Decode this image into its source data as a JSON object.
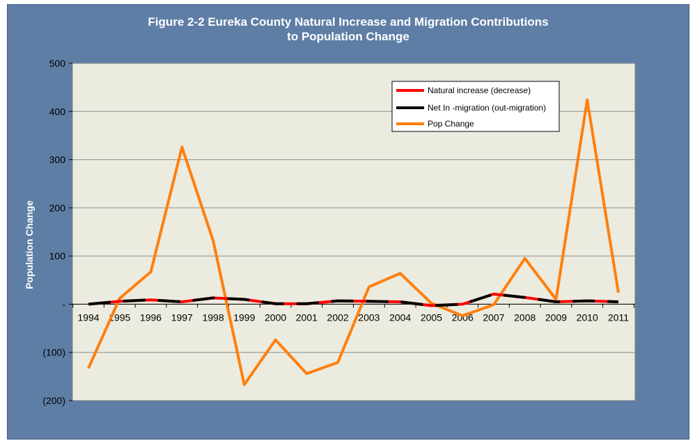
{
  "chart_data": {
    "type": "line",
    "title_line1": "Figure 2-2 Eureka County Natural Increase and Migration Contributions",
    "title_line2": "to Population Change",
    "ylabel": "Population Change",
    "ylim": [
      -200,
      500
    ],
    "yticks": [
      {
        "value": 500,
        "label": "500"
      },
      {
        "value": 400,
        "label": "400"
      },
      {
        "value": 300,
        "label": "300"
      },
      {
        "value": 200,
        "label": "200"
      },
      {
        "value": 100,
        "label": "100"
      },
      {
        "value": 0,
        "label": "-"
      },
      {
        "value": -100,
        "label": "(100)"
      },
      {
        "value": -200,
        "label": "(200)"
      }
    ],
    "categories": [
      "1994",
      "1995",
      "1996",
      "1997",
      "1998",
      "1999",
      "2000",
      "2001",
      "2002",
      "2003",
      "2004",
      "2005",
      "2006",
      "2007",
      "2008",
      "2009",
      "2010",
      "2011"
    ],
    "grid": true,
    "legend_position": "top-right",
    "series": [
      {
        "name": "Natural increase (decrease)",
        "color": "#ff0000",
        "style": "dashed",
        "values": [
          0,
          6,
          9,
          5,
          13,
          10,
          1,
          1,
          7,
          6,
          5,
          -3,
          0,
          21,
          14,
          5,
          7,
          5
        ]
      },
      {
        "name": "Net In -migration (out-migration)",
        "color": "#000000",
        "style": "dashed",
        "values": [
          0,
          6,
          9,
          5,
          13,
          10,
          1,
          1,
          7,
          6,
          5,
          -3,
          0,
          21,
          14,
          5,
          7,
          5
        ]
      },
      {
        "name": "Pop Change",
        "color": "#ff7f0e",
        "style": "solid",
        "values": [
          -133,
          12,
          67,
          326,
          132,
          -167,
          -74,
          -144,
          -121,
          36,
          64,
          2,
          -24,
          -1,
          95,
          10,
          424,
          24
        ]
      }
    ]
  }
}
